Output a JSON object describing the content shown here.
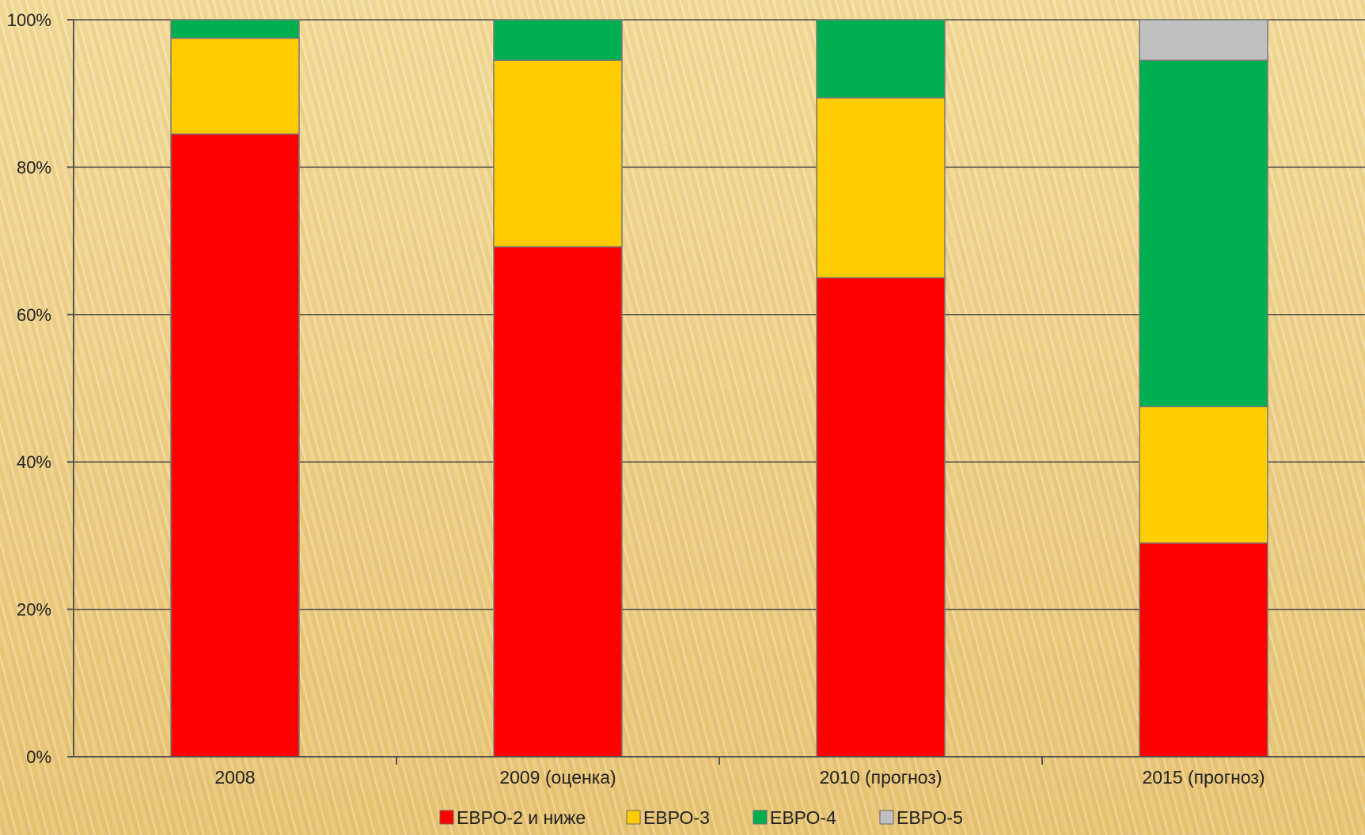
{
  "chart_data": {
    "type": "bar",
    "stacked": true,
    "percent": true,
    "categories": [
      "2008",
      "2009 (оценка)",
      "2010 (прогноз)",
      "2015 (прогноз)"
    ],
    "series": [
      {
        "name": "ЕВРО-2 и ниже",
        "color": "#ff0000",
        "values": [
          84.5,
          69.2,
          65.0,
          29.0
        ]
      },
      {
        "name": "ЕВРО-3",
        "color": "#ffcc00",
        "values": [
          13.0,
          25.3,
          24.4,
          18.5
        ]
      },
      {
        "name": "ЕВРО-4",
        "color": "#00b050",
        "values": [
          2.5,
          5.5,
          10.6,
          47.0
        ]
      },
      {
        "name": "ЕВРО-5",
        "color": "#c0c0c0",
        "values": [
          0,
          0,
          0,
          5.5
        ]
      }
    ],
    "ylim": [
      0,
      100
    ],
    "yticks": [
      "0%",
      "20%",
      "40%",
      "60%",
      "80%",
      "100%"
    ],
    "grid": true,
    "legend_position": "bottom"
  }
}
